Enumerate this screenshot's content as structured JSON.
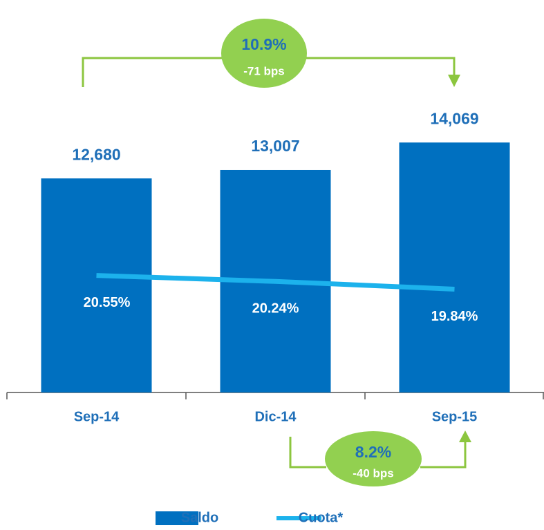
{
  "chart_data": {
    "type": "bar",
    "categories": [
      "Sep-14",
      "Dic-14",
      "Sep-15"
    ],
    "series": [
      {
        "name": "Saldo",
        "type": "bar",
        "color": "#0070c0",
        "values": [
          12680,
          13007,
          14069
        ],
        "value_labels": [
          "12,680",
          "13,007",
          "14,069"
        ]
      },
      {
        "name": "Cuota*",
        "type": "line",
        "axis": "y2",
        "color": "#1cb2ec",
        "values": [
          20.55,
          20.24,
          19.84
        ],
        "value_labels": [
          "20.55%",
          "20.24%",
          "19.84%"
        ]
      }
    ],
    "ylim": [
      4400,
      16000
    ],
    "y2lim": [
      14.5,
      30
    ],
    "annotations": [
      "10.9%",
      "-71 bps",
      "8.2%",
      "-40 bps"
    ],
    "legend": "bottom"
  }
}
